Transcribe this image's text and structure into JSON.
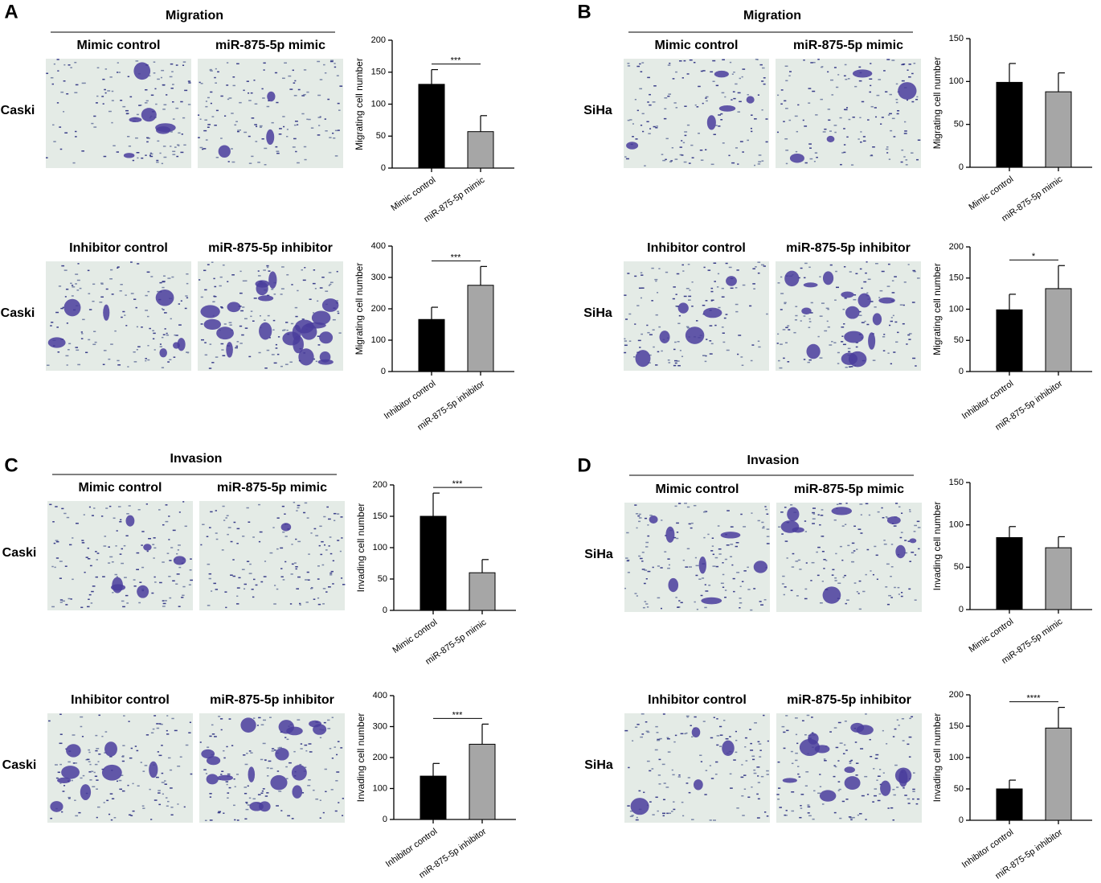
{
  "panels": [
    {
      "label": "A",
      "title": "Migration",
      "rows": [
        {
          "cell_line": "Caski",
          "conditions": [
            "Mimic control",
            "miR-875-5p mimic"
          ]
        },
        {
          "cell_line": "Caski",
          "conditions": [
            "Inhibitor control",
            "miR-875-5p inhibitor"
          ]
        }
      ]
    },
    {
      "label": "B",
      "title": "Migration",
      "rows": [
        {
          "cell_line": "SiHa",
          "conditions": [
            "Mimic control",
            "miR-875-5p mimic"
          ]
        },
        {
          "cell_line": "SiHa",
          "conditions": [
            "Inhibitor control",
            "miR-875-5p inhibitor"
          ]
        }
      ]
    },
    {
      "label": "C",
      "title": "Invasion",
      "rows": [
        {
          "cell_line": "Caski",
          "conditions": [
            "Mimic control",
            "miR-875-5p mimic"
          ]
        },
        {
          "cell_line": "Caski",
          "conditions": [
            "Inhibitor control",
            "miR-875-5p inhibitor"
          ]
        }
      ]
    },
    {
      "label": "D",
      "title": "Invasion",
      "rows": [
        {
          "cell_line": "SiHa",
          "conditions": [
            "Mimic control",
            "miR-875-5p mimic"
          ]
        },
        {
          "cell_line": "SiHa",
          "conditions": [
            "Inhibitor control",
            "miR-875-5p inhibitor"
          ]
        }
      ]
    }
  ],
  "chart_data": [
    {
      "type": "bar",
      "ylabel": "Migrating cell number",
      "categories": [
        "Mimic control",
        "miR-875-5p mimic"
      ],
      "values": [
        131,
        57
      ],
      "errors": [
        23,
        25
      ],
      "colors": [
        "#000000",
        "#a6a6a6"
      ],
      "ylim": [
        0,
        200
      ],
      "yticks": [
        0,
        50,
        100,
        150,
        200
      ],
      "annotation": "***"
    },
    {
      "type": "bar",
      "ylabel": "Migrating cell number",
      "categories": [
        "Inhibitor control",
        "miR-875-5p inhibitor"
      ],
      "values": [
        166,
        275
      ],
      "errors": [
        39,
        60
      ],
      "colors": [
        "#000000",
        "#a6a6a6"
      ],
      "ylim": [
        0,
        400
      ],
      "yticks": [
        0,
        100,
        200,
        300,
        400
      ],
      "annotation": "***"
    },
    {
      "type": "bar",
      "ylabel": "Migrating cell number",
      "categories": [
        "Mimic control",
        "miR-875-5p mimic"
      ],
      "values": [
        99,
        88
      ],
      "errors": [
        22,
        22
      ],
      "colors": [
        "#000000",
        "#a6a6a6"
      ],
      "ylim": [
        0,
        150
      ],
      "yticks": [
        0,
        50,
        100,
        150
      ]
    },
    {
      "type": "bar",
      "ylabel": "Migrating cell number",
      "categories": [
        "Inhibitor control",
        "miR-875-5p inhibitor"
      ],
      "values": [
        99,
        133
      ],
      "errors": [
        25,
        37
      ],
      "colors": [
        "#000000",
        "#a6a6a6"
      ],
      "ylim": [
        0,
        200
      ],
      "yticks": [
        0,
        50,
        100,
        150,
        200
      ],
      "annotation": "*"
    },
    {
      "type": "bar",
      "ylabel": "Invading cell number",
      "categories": [
        "Mimic control",
        "miR-875-5p mimic"
      ],
      "values": [
        150,
        60
      ],
      "errors": [
        37,
        21
      ],
      "colors": [
        "#000000",
        "#a6a6a6"
      ],
      "ylim": [
        0,
        200
      ],
      "yticks": [
        0,
        50,
        100,
        150,
        200
      ],
      "annotation": "***"
    },
    {
      "type": "bar",
      "ylabel": "Invading cell number",
      "categories": [
        "Inhibitor control",
        "miR-875-5p inhibitor"
      ],
      "values": [
        140,
        243
      ],
      "errors": [
        41,
        65
      ],
      "colors": [
        "#000000",
        "#a6a6a6"
      ],
      "ylim": [
        0,
        400
      ],
      "yticks": [
        0,
        100,
        200,
        300,
        400
      ],
      "annotation": "***"
    },
    {
      "type": "bar",
      "ylabel": "Invading cell number",
      "categories": [
        "Mimic control",
        "miR-875-5p mimic"
      ],
      "values": [
        85,
        73
      ],
      "errors": [
        13,
        13
      ],
      "colors": [
        "#000000",
        "#a6a6a6"
      ],
      "ylim": [
        0,
        150
      ],
      "yticks": [
        0,
        50,
        100,
        150
      ]
    },
    {
      "type": "bar",
      "ylabel": "Invading cell number",
      "categories": [
        "Inhibitor control",
        "miR-875-5p inhibitor"
      ],
      "values": [
        50,
        147
      ],
      "errors": [
        14,
        33
      ],
      "colors": [
        "#000000",
        "#a6a6a6"
      ],
      "ylim": [
        0,
        200
      ],
      "yticks": [
        0,
        50,
        100,
        150,
        200
      ],
      "annotation": "****"
    }
  ]
}
